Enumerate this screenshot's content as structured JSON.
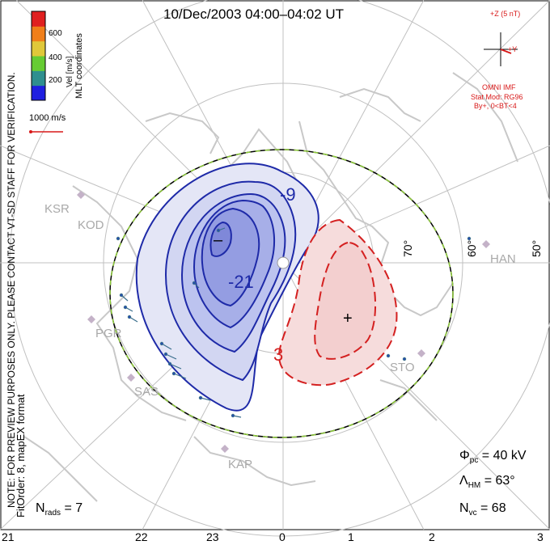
{
  "title": "10/Dec/2003 04:00–04:02 UT",
  "notes": {
    "line1": "NOTE: FOR PREVIEW PURPOSES ONLY. PLEASE CONTACT VT-SD STAFF FOR VERIFICATION.",
    "line2": "FitOrder: 8, mapEX format"
  },
  "colorbar": {
    "ticks": [
      "600",
      "400",
      "200"
    ],
    "label": "Vel [m/s]",
    "coords_label": "MLT coordinates",
    "colors": [
      "#1f1fe0",
      "#2f8f8f",
      "#66cc33",
      "#e0c83a",
      "#f07f1a",
      "#e02020"
    ]
  },
  "vector_scale": "1000 m/s",
  "imf": {
    "z_label": "+Z (5 nT)",
    "y_label": "+Y",
    "source": "OMNI IMF",
    "model": "Stat Mod: RG96",
    "condition": "By+, 0<BT<4"
  },
  "stats": {
    "phi_symbol": "Φ",
    "phi_sub": "pc",
    "phi_value": "= 40 kV",
    "lambda_symbol": "Λ",
    "lambda_sub": "HM",
    "lambda_value": "= 63°",
    "nvc_symbol": "N",
    "nvc_sub": "vc",
    "nvc_value": "= 68",
    "nrads_symbol": "N",
    "nrads_sub": "rads",
    "nrads_value": "= 7"
  },
  "mlt_ticks": [
    "21",
    "22",
    "23",
    "0",
    "1",
    "2",
    "3"
  ],
  "latitude_labels": [
    "70°",
    "60°",
    "50°"
  ],
  "stations": [
    "KSR",
    "KOD",
    "PGR",
    "SAS",
    "KAP",
    "STO",
    "HAN"
  ],
  "contour_labels": {
    "neg": [
      "-9",
      "-21"
    ],
    "pos": [
      "3"
    ]
  },
  "markers": {
    "min": "–",
    "max": "+"
  },
  "colors": {
    "negative": "#2020b0",
    "positive": "#d42020",
    "boundary_dash": "#8ecb3a",
    "land": "#c8c8c8",
    "grid": "#c0c0c0"
  }
}
